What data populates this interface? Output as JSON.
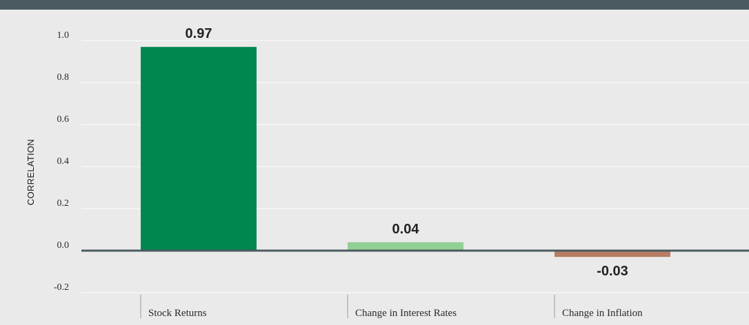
{
  "colors": {
    "background": "#eaeaea",
    "header": "#4a5a60",
    "grid": "#ffffff",
    "zero_line": "#4a5a60"
  },
  "chart_data": {
    "type": "bar",
    "title": "",
    "xlabel": "",
    "ylabel": "CORRELATION",
    "ylim": [
      -0.2,
      1.0
    ],
    "yticks": [
      "1.0",
      "0.8",
      "0.6",
      "0.4",
      "0.2",
      "0.0",
      "-0.2"
    ],
    "grid": true,
    "categories": [
      "Stock Returns",
      "Change in Interest Rates",
      "Change in Inflation"
    ],
    "values": [
      0.97,
      0.04,
      -0.03
    ],
    "data_labels": [
      "0.97",
      "0.04",
      "-0.03"
    ],
    "bar_colors": [
      "#00874f",
      "#92cf95",
      "#b87d65"
    ]
  }
}
